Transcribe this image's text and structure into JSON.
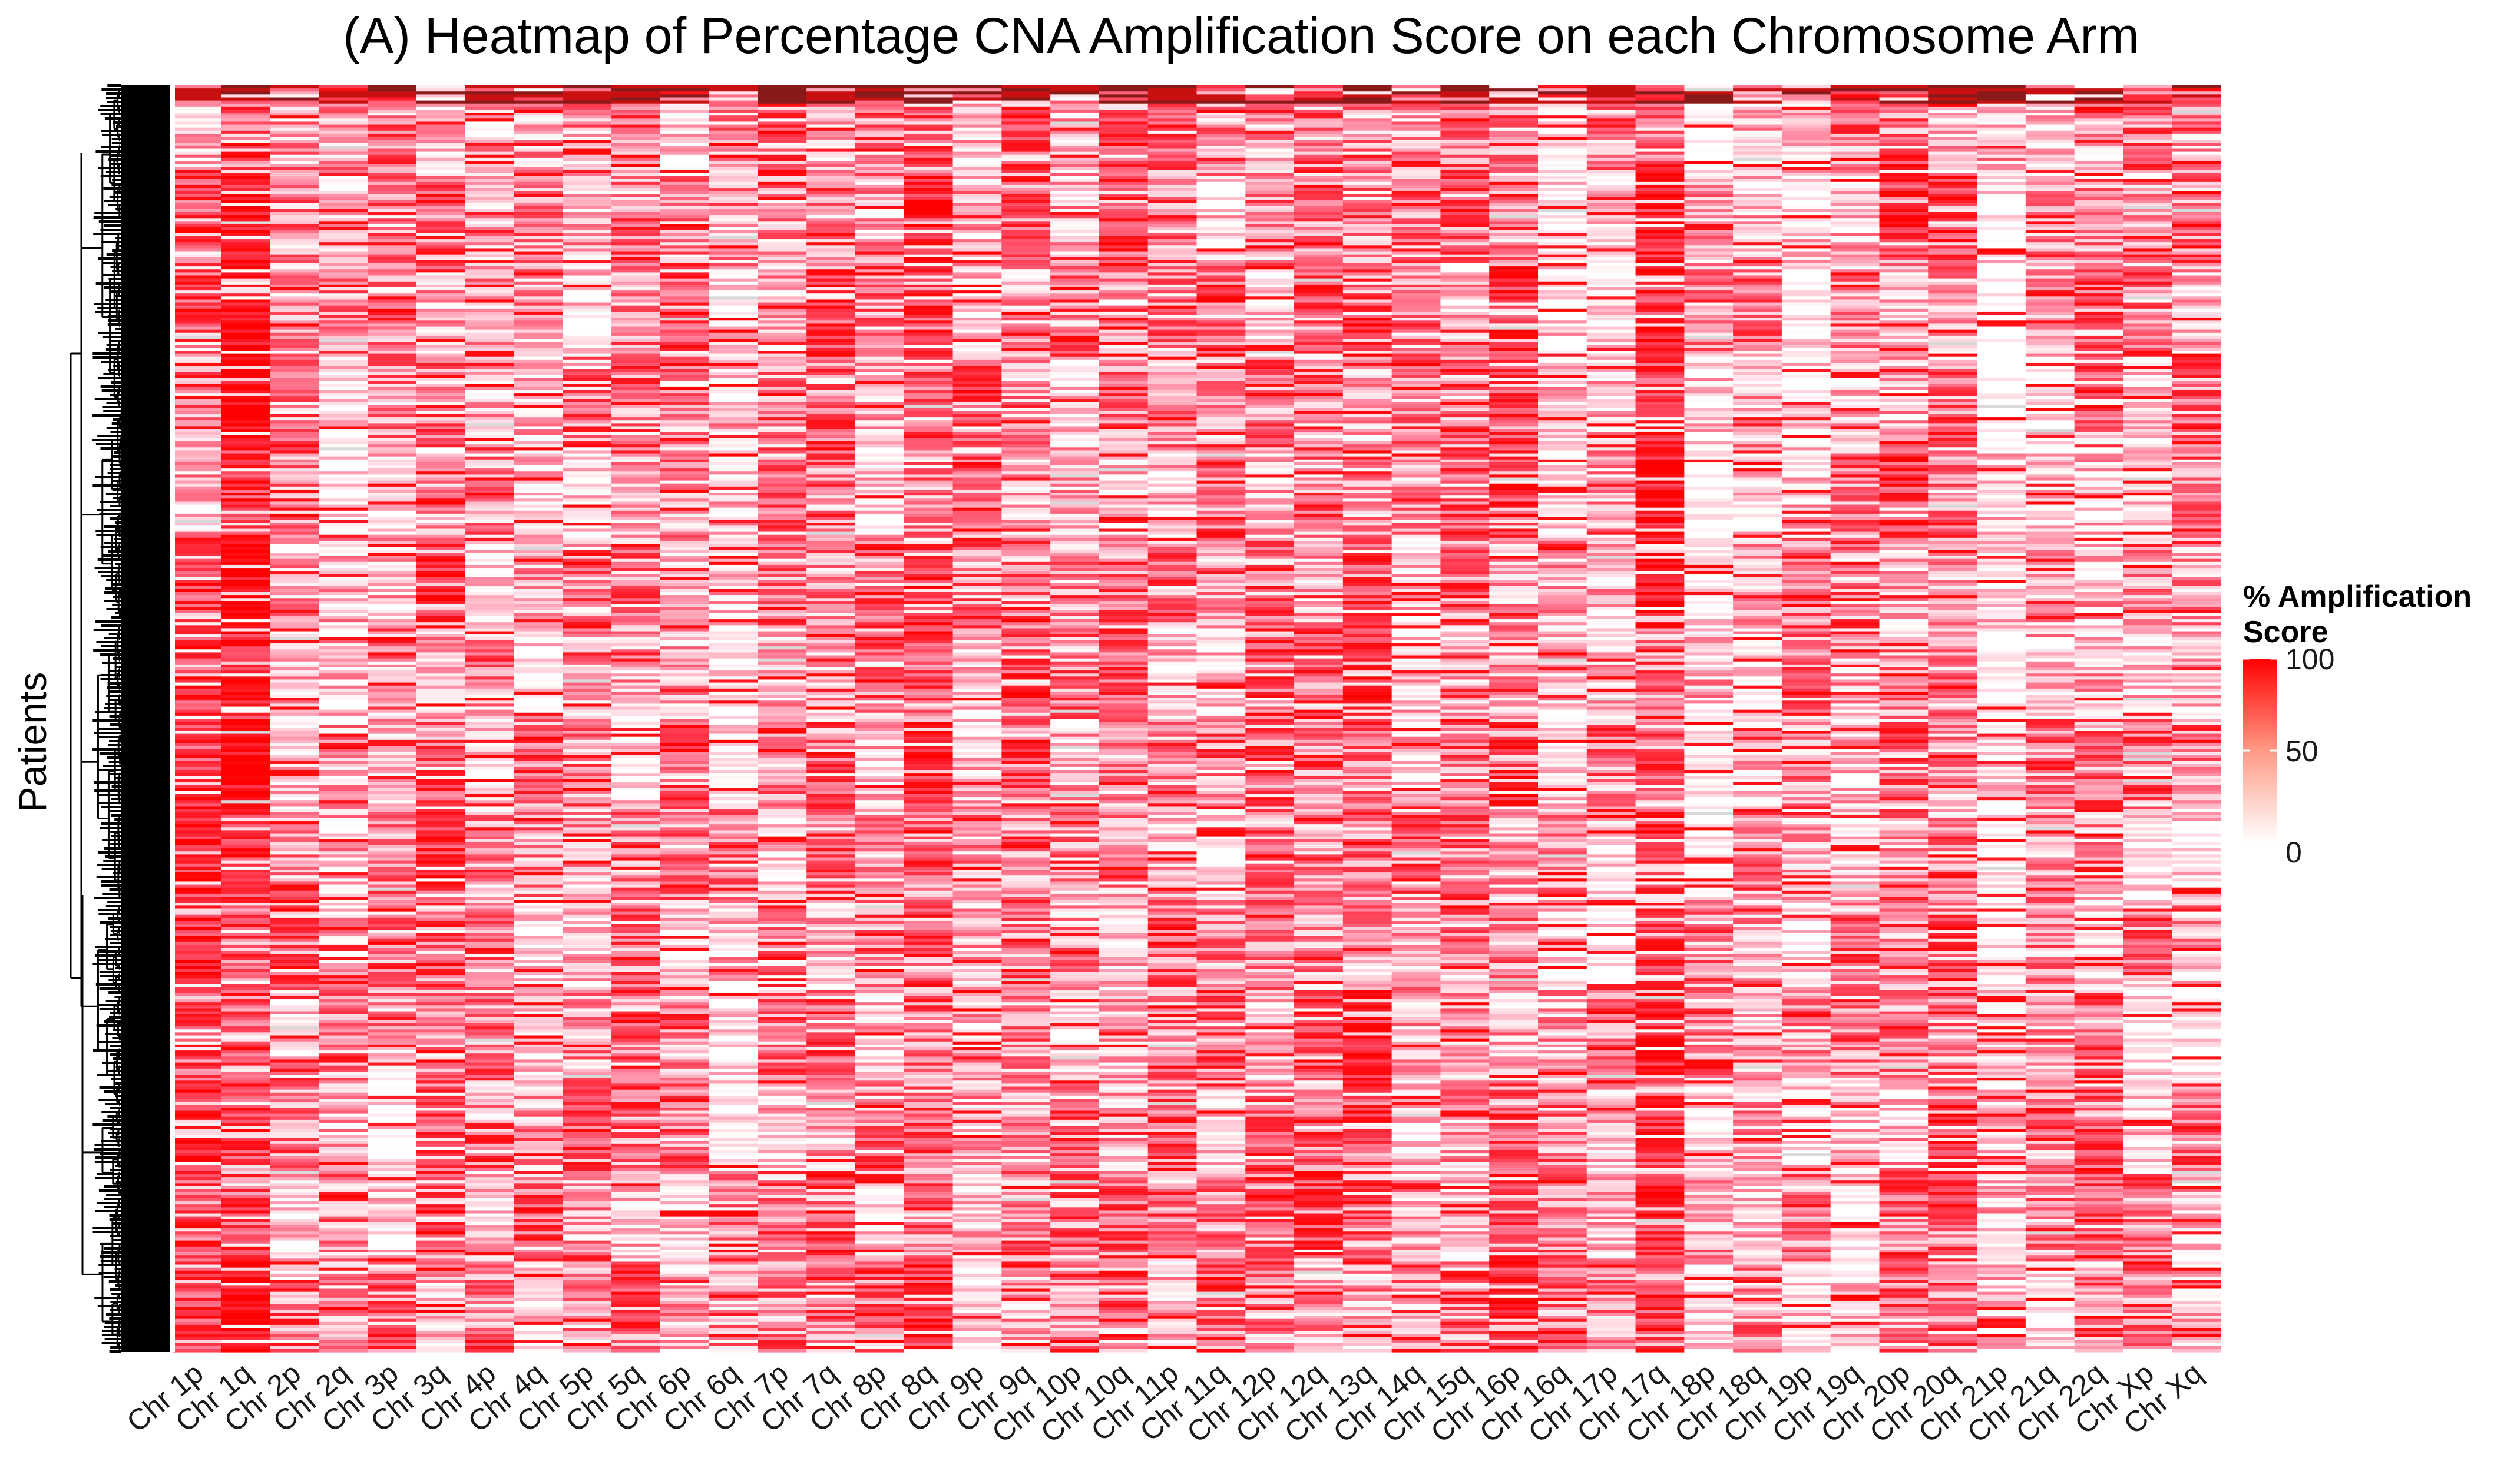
{
  "chart_data": {
    "type": "heatmap",
    "title": "(A) Heatmap of Percentage CNA Amplification Score on each Chromosome Arm",
    "xlabel": "",
    "ylabel": "Patients",
    "x_categories": [
      "Chr 1p",
      "Chr 1q",
      "Chr 2p",
      "Chr 2q",
      "Chr 3p",
      "Chr 3q",
      "Chr 4p",
      "Chr 4q",
      "Chr 5p",
      "Chr 5q",
      "Chr 6p",
      "Chr 6q",
      "Chr 7p",
      "Chr 7q",
      "Chr 8p",
      "Chr 8q",
      "Chr 9p",
      "Chr 9q",
      "Chr 10p",
      "Chr 10q",
      "Chr 11p",
      "Chr 11q",
      "Chr 12p",
      "Chr 12q",
      "Chr 13q",
      "Chr 14q",
      "Chr 15q",
      "Chr 16p",
      "Chr 16q",
      "Chr 17p",
      "Chr 17q",
      "Chr 18p",
      "Chr 18q",
      "Chr 19p",
      "Chr 19q",
      "Chr 20p",
      "Chr 20q",
      "Chr 21p",
      "Chr 21q",
      "Chr 22q",
      "Chr Xp",
      "Chr Xq"
    ],
    "row_dendrogram": true,
    "color_scale": {
      "title_line1": "% Amplification",
      "title_line2": "Score",
      "low_color": "#ffffff",
      "high_color": "#ff0000",
      "missing_color": "#d9d9d9",
      "range": [
        0,
        100
      ],
      "ticks": [
        "100",
        "50",
        "0"
      ],
      "tick_values": [
        100,
        50,
        0
      ]
    },
    "column_mean_amplification": [
      55,
      82,
      38,
      30,
      28,
      50,
      26,
      30,
      34,
      40,
      35,
      25,
      42,
      50,
      35,
      68,
      30,
      42,
      33,
      38,
      30,
      32,
      36,
      55,
      50,
      40,
      45,
      55,
      22,
      20,
      65,
      18,
      22,
      28,
      30,
      45,
      50,
      8,
      25,
      35,
      28,
      35
    ],
    "legend_position": "right"
  }
}
